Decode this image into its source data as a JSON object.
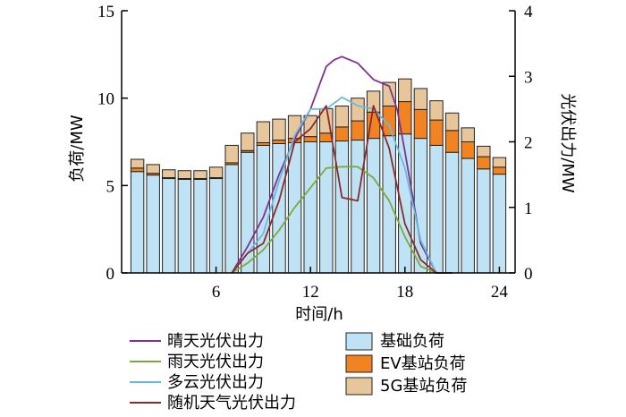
{
  "chart_data": {
    "type": "bar",
    "title": "",
    "xlabel": "时间/h",
    "ylabel": "负荷/MW",
    "y2label": "光伏出力/MW",
    "x": [
      1,
      2,
      3,
      4,
      5,
      6,
      7,
      8,
      9,
      10,
      11,
      12,
      13,
      14,
      15,
      16,
      17,
      18,
      19,
      20,
      21,
      22,
      23,
      24
    ],
    "xlim": [
      0,
      25
    ],
    "ylim": [
      0,
      15
    ],
    "y2lim": [
      0,
      4
    ],
    "xticks": [
      "6",
      "12",
      "18",
      "24"
    ],
    "yticks": [
      "0",
      "5",
      "10",
      "15"
    ],
    "y2ticks": [
      "0",
      "1",
      "2",
      "3",
      "4"
    ],
    "stacked_bars": [
      {
        "name": "基础负荷",
        "color": "#bfe3f5",
        "values": [
          5.8,
          5.6,
          5.4,
          5.35,
          5.35,
          5.4,
          6.2,
          6.9,
          7.3,
          7.4,
          7.45,
          7.5,
          7.5,
          7.55,
          7.6,
          7.7,
          7.85,
          7.95,
          7.7,
          7.3,
          6.9,
          6.55,
          5.95,
          5.65
        ]
      },
      {
        "name": "EV基站负荷",
        "color": "#f28322",
        "values": [
          0.2,
          0.1,
          0.05,
          0.05,
          0.05,
          0.05,
          0.1,
          0.1,
          0.15,
          0.2,
          0.25,
          0.3,
          0.5,
          0.8,
          1.1,
          1.5,
          1.7,
          1.85,
          1.65,
          1.45,
          1.25,
          0.95,
          0.7,
          0.4
        ]
      },
      {
        "name": "5G基站负荷",
        "color": "#e8c69b",
        "values": [
          0.5,
          0.5,
          0.45,
          0.45,
          0.45,
          0.6,
          1.0,
          1.0,
          1.2,
          1.2,
          1.3,
          1.2,
          1.4,
          1.2,
          1.3,
          1.2,
          1.35,
          1.3,
          1.2,
          1.1,
          1.0,
          0.8,
          0.6,
          0.55
        ]
      }
    ],
    "series": [
      {
        "name": "晴天光伏出力",
        "color": "#7b3294",
        "x": [
          7,
          8,
          9,
          10,
          11,
          12,
          13,
          13.5,
          14,
          15,
          16,
          17,
          17.5,
          18,
          19,
          20,
          21
        ],
        "values": [
          0,
          0.4,
          0.85,
          1.5,
          2.05,
          2.5,
          3.15,
          3.25,
          3.3,
          3.2,
          2.95,
          2.85,
          2.5,
          1.85,
          0.45,
          0,
          0
        ]
      },
      {
        "name": "雨天光伏出力",
        "color": "#7aaa3a",
        "x": [
          7,
          8,
          9,
          10,
          11,
          12,
          13,
          14,
          15,
          16,
          17,
          18,
          19,
          20,
          21
        ],
        "values": [
          0,
          0.15,
          0.35,
          0.65,
          1.0,
          1.3,
          1.6,
          1.62,
          1.62,
          1.45,
          1.1,
          0.55,
          0.1,
          0,
          0
        ]
      },
      {
        "name": "多云光伏出力",
        "color": "#6cb9e0",
        "x": [
          7,
          8,
          9,
          10,
          11,
          12,
          13,
          14,
          15,
          16,
          17,
          18,
          19,
          20,
          21
        ],
        "values": [
          0,
          0.3,
          0.6,
          1.4,
          2.1,
          2.5,
          2.5,
          2.68,
          2.55,
          2.5,
          2.25,
          1.6,
          0.5,
          0,
          0
        ]
      },
      {
        "name": "随机天气光伏出力",
        "color": "#8b2a2a",
        "x": [
          7,
          8,
          9,
          10,
          11,
          12,
          13,
          14,
          15,
          16,
          17,
          18,
          19,
          20,
          21
        ],
        "values": [
          0,
          0.3,
          0.45,
          1.1,
          2.0,
          2.2,
          2.55,
          1.15,
          1.1,
          2.55,
          1.9,
          0.75,
          0.2,
          0,
          0
        ]
      }
    ],
    "legend_left": [
      "晴天光伏出力",
      "雨天光伏出力",
      "多云光伏出力",
      "随机天气光伏出力"
    ],
    "legend_right": [
      "基础负荷",
      "EV基站负荷",
      "5G基站负荷"
    ]
  }
}
